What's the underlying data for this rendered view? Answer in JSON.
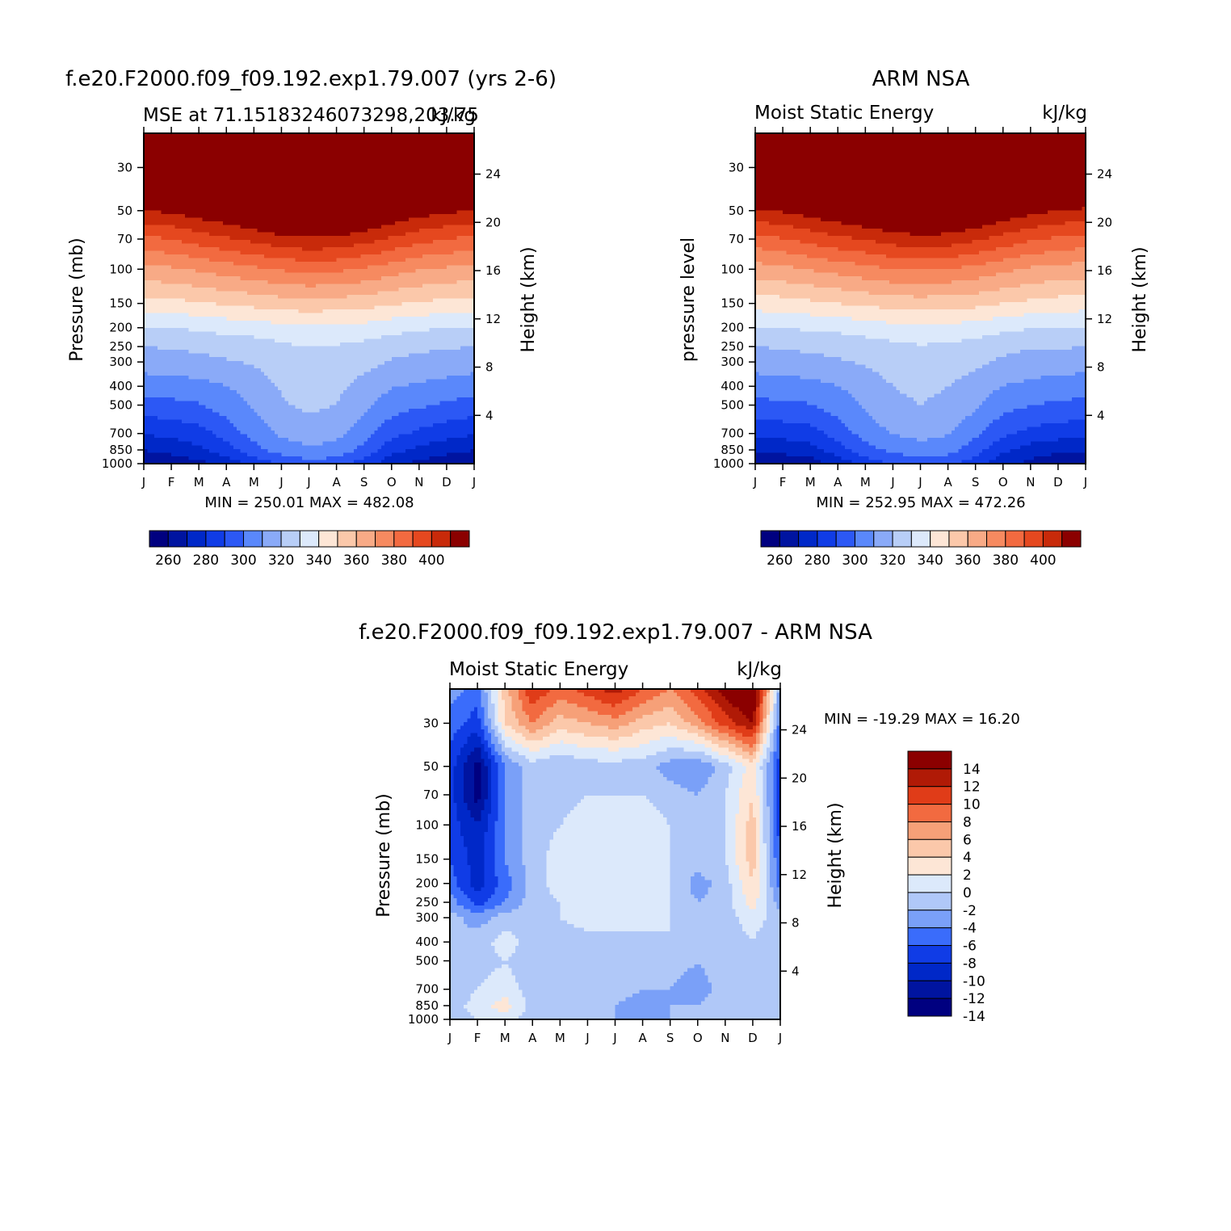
{
  "chart_data": [
    {
      "type": "heatmap",
      "title": "f.e20.F2000.f09_f09.192.exp1.79.007 (yrs 2-6)",
      "subtitle_left": "MSE at 71.15183246073298,203.75",
      "subtitle_right": "kJ/kg",
      "ylabel": "Pressure (mb)",
      "ylabel_right": "Height (km)",
      "minmax": "MIN = 250.01  MAX = 482.08",
      "x_ticks": [
        "J",
        "F",
        "M",
        "A",
        "M",
        "J",
        "J",
        "A",
        "S",
        "O",
        "N",
        "D",
        "J"
      ],
      "y_ticks": [
        30,
        50,
        70,
        100,
        150,
        200,
        250,
        300,
        400,
        500,
        700,
        850,
        1000
      ],
      "y_ticks_right": [
        24,
        20,
        16,
        12,
        8,
        4
      ],
      "ylim": [
        1000,
        20
      ],
      "colorbar_labels": [
        "260",
        "280",
        "300",
        "320",
        "340",
        "360",
        "380",
        "400"
      ],
      "levels": [
        255,
        260,
        265,
        270,
        275,
        280,
        285,
        290,
        295,
        300,
        305,
        310,
        315,
        320,
        325,
        330,
        335,
        340,
        345,
        350,
        355,
        360,
        365,
        370,
        375,
        380,
        385,
        390,
        395,
        400
      ],
      "months": [
        "Jan",
        "Feb",
        "Mar",
        "Apr",
        "May",
        "Jun",
        "Jul",
        "Aug",
        "Sep",
        "Oct",
        "Nov",
        "Dec",
        "Jan"
      ],
      "series": [
        {
          "pressure": 1000,
          "values": [
            256,
            258,
            262,
            268,
            278,
            285,
            290,
            288,
            280,
            268,
            262,
            258,
            256
          ]
        },
        {
          "pressure": 850,
          "values": [
            265,
            268,
            272,
            280,
            290,
            298,
            302,
            300,
            290,
            278,
            272,
            268,
            265
          ]
        },
        {
          "pressure": 700,
          "values": [
            275,
            277,
            280,
            288,
            298,
            305,
            308,
            306,
            298,
            287,
            282,
            278,
            275
          ]
        },
        {
          "pressure": 500,
          "values": [
            290,
            291,
            293,
            298,
            305,
            312,
            315,
            313,
            306,
            298,
            295,
            292,
            290
          ]
        },
        {
          "pressure": 400,
          "values": [
            298,
            299,
            300,
            303,
            308,
            314,
            317,
            315,
            310,
            304,
            302,
            300,
            298
          ]
        },
        {
          "pressure": 300,
          "values": [
            308,
            309,
            310,
            312,
            314,
            318,
            320,
            319,
            316,
            312,
            310,
            309,
            308
          ]
        },
        {
          "pressure": 250,
          "values": [
            313,
            314,
            315,
            317,
            318,
            321,
            323,
            322,
            320,
            317,
            315,
            314,
            313
          ]
        },
        {
          "pressure": 200,
          "values": [
            322,
            323,
            324,
            326,
            327,
            329,
            331,
            330,
            329,
            326,
            324,
            323,
            322
          ]
        },
        {
          "pressure": 150,
          "values": [
            338,
            339,
            341,
            343,
            345,
            347,
            348,
            347,
            346,
            343,
            341,
            339,
            338
          ]
        },
        {
          "pressure": 100,
          "values": [
            358,
            360,
            363,
            366,
            369,
            372,
            374,
            373,
            370,
            366,
            362,
            360,
            358
          ]
        },
        {
          "pressure": 70,
          "values": [
            378,
            381,
            385,
            389,
            393,
            397,
            399,
            398,
            394,
            389,
            384,
            381,
            378
          ]
        },
        {
          "pressure": 50,
          "values": [
            400,
            402,
            406,
            410,
            415,
            419,
            421,
            420,
            416,
            410,
            405,
            402,
            400
          ]
        },
        {
          "pressure": 30,
          "values": [
            440,
            442,
            446,
            451,
            456,
            460,
            462,
            461,
            457,
            451,
            445,
            442,
            440
          ]
        },
        {
          "pressure": 20,
          "values": [
            470,
            472,
            476,
            480,
            482,
            482,
            482,
            482,
            480,
            476,
            473,
            471,
            470
          ]
        }
      ]
    },
    {
      "type": "heatmap",
      "title": "ARM NSA",
      "subtitle_left": "Moist Static Energy",
      "subtitle_right": "kJ/kg",
      "ylabel": "pressure level",
      "ylabel_right": "Height (km)",
      "minmax": "MIN = 252.95  MAX = 472.26",
      "x_ticks": [
        "J",
        "F",
        "M",
        "A",
        "M",
        "J",
        "J",
        "A",
        "S",
        "O",
        "N",
        "D",
        "J"
      ],
      "y_ticks": [
        30,
        50,
        70,
        100,
        150,
        200,
        250,
        300,
        400,
        500,
        700,
        850,
        1000
      ],
      "y_ticks_right": [
        24,
        20,
        16,
        12,
        8,
        4
      ],
      "ylim": [
        1000,
        20
      ],
      "colorbar_labels": [
        "260",
        "280",
        "300",
        "320",
        "340",
        "360",
        "380",
        "400"
      ],
      "levels": [
        255,
        260,
        265,
        270,
        275,
        280,
        285,
        290,
        295,
        300,
        305,
        310,
        315,
        320,
        325,
        330,
        335,
        340,
        345,
        350,
        355,
        360,
        365,
        370,
        375,
        380,
        385,
        390,
        395,
        400
      ],
      "months": [
        "Jan",
        "Feb",
        "Mar",
        "Apr",
        "May",
        "Jun",
        "Jul",
        "Aug",
        "Sep",
        "Oct",
        "Nov",
        "Dec",
        "Jan"
      ],
      "series": [
        {
          "pressure": 1000,
          "values": [
            255,
            257,
            260,
            268,
            278,
            285,
            288,
            286,
            279,
            268,
            262,
            258,
            255
          ]
        },
        {
          "pressure": 850,
          "values": [
            266,
            268,
            270,
            280,
            290,
            296,
            300,
            298,
            288,
            276,
            270,
            267,
            266
          ]
        },
        {
          "pressure": 700,
          "values": [
            277,
            278,
            280,
            288,
            298,
            304,
            306,
            304,
            296,
            286,
            281,
            279,
            277
          ]
        },
        {
          "pressure": 500,
          "values": [
            291,
            292,
            293,
            298,
            305,
            311,
            313,
            311,
            305,
            297,
            294,
            292,
            291
          ]
        },
        {
          "pressure": 400,
          "values": [
            298,
            299,
            300,
            303,
            308,
            313,
            315,
            313,
            309,
            303,
            301,
            299,
            298
          ]
        },
        {
          "pressure": 300,
          "values": [
            308,
            309,
            310,
            312,
            314,
            317,
            319,
            318,
            315,
            311,
            309,
            308,
            308
          ]
        },
        {
          "pressure": 250,
          "values": [
            313,
            314,
            315,
            316,
            318,
            320,
            322,
            321,
            319,
            316,
            314,
            314,
            313
          ]
        },
        {
          "pressure": 200,
          "values": [
            322,
            323,
            324,
            325,
            327,
            329,
            330,
            329,
            328,
            325,
            323,
            322,
            322
          ]
        },
        {
          "pressure": 150,
          "values": [
            337,
            338,
            340,
            342,
            344,
            346,
            347,
            346,
            345,
            342,
            340,
            338,
            337
          ]
        },
        {
          "pressure": 100,
          "values": [
            357,
            359,
            362,
            365,
            368,
            371,
            372,
            371,
            368,
            364,
            360,
            358,
            357
          ]
        },
        {
          "pressure": 70,
          "values": [
            377,
            380,
            384,
            388,
            391,
            395,
            397,
            396,
            392,
            387,
            382,
            379,
            377
          ]
        },
        {
          "pressure": 50,
          "values": [
            398,
            401,
            405,
            409,
            413,
            417,
            419,
            418,
            414,
            408,
            403,
            400,
            398
          ]
        },
        {
          "pressure": 30,
          "values": [
            435,
            437,
            441,
            445,
            450,
            453,
            455,
            454,
            450,
            445,
            440,
            437,
            435
          ]
        },
        {
          "pressure": 20,
          "values": [
            462,
            464,
            467,
            470,
            472,
            472,
            472,
            472,
            470,
            467,
            464,
            462,
            462
          ]
        }
      ]
    },
    {
      "type": "heatmap",
      "title": "f.e20.F2000.f09_f09.192.exp1.79.007 - ARM NSA",
      "subtitle_left": "Moist Static Energy",
      "subtitle_right": "kJ/kg",
      "ylabel": "Pressure (mb)",
      "ylabel_right": "Height (km)",
      "minmax": "MIN = -19.29 MAX =   16.20",
      "x_ticks": [
        "J",
        "F",
        "M",
        "A",
        "M",
        "J",
        "J",
        "A",
        "S",
        "O",
        "N",
        "D",
        "J"
      ],
      "y_ticks": [
        30,
        50,
        70,
        100,
        150,
        200,
        250,
        300,
        400,
        500,
        700,
        850,
        1000
      ],
      "y_ticks_right": [
        24,
        20,
        16,
        12,
        8,
        4
      ],
      "ylim": [
        1000,
        20
      ],
      "colorbar_labels": [
        "14",
        "12",
        "10",
        "8",
        "6",
        "4",
        "2",
        "0",
        "-2",
        "-4",
        "-6",
        "-8",
        "-10",
        "-12",
        "-14"
      ],
      "levels": [
        -14,
        -12,
        -10,
        -8,
        -6,
        -4,
        -2,
        0,
        2,
        4,
        6,
        8,
        10,
        12,
        14
      ],
      "months": [
        "Jan",
        "Feb",
        "Mar",
        "Apr",
        "May",
        "Jun",
        "Jul",
        "Aug",
        "Sep",
        "Oct",
        "Nov",
        "Dec",
        "Jan"
      ],
      "series": [
        {
          "pressure": 1000,
          "values": [
            -3,
            -2,
            -1,
            -3,
            -4,
            -4,
            -4,
            -5,
            -4,
            -4,
            -3,
            -3,
            -3
          ]
        },
        {
          "pressure": 850,
          "values": [
            -3,
            -1,
            1,
            -3,
            -3,
            -4,
            -4,
            -5,
            -4,
            -4,
            -3,
            -2,
            -3
          ]
        },
        {
          "pressure": 700,
          "values": [
            -4,
            -2,
            -1,
            -3,
            -3,
            -3,
            -3,
            -4,
            -4,
            -5,
            -3,
            -2,
            -4
          ]
        },
        {
          "pressure": 500,
          "values": [
            -4,
            -3,
            -2,
            -3,
            -3,
            -3,
            -3,
            -3,
            -3,
            -4,
            -3,
            -2,
            -4
          ]
        },
        {
          "pressure": 400,
          "values": [
            -4,
            -3,
            -1,
            -3,
            -3,
            -3,
            -3,
            -3,
            -2,
            -3,
            -3,
            -2,
            -4
          ]
        },
        {
          "pressure": 300,
          "values": [
            -3,
            -5,
            -3,
            -3,
            -2,
            -1,
            -1,
            -1,
            -2,
            -3,
            -3,
            -1,
            -3
          ]
        },
        {
          "pressure": 250,
          "values": [
            -5,
            -9,
            -6,
            -3,
            -2,
            -1,
            0,
            -1,
            -2,
            -4,
            -3,
            1,
            -5
          ]
        },
        {
          "pressure": 200,
          "values": [
            -7,
            -11,
            -7,
            -3,
            -1,
            -1,
            0,
            -1,
            -2,
            -5,
            -3,
            2,
            -7
          ]
        },
        {
          "pressure": 150,
          "values": [
            -8,
            -11,
            -6,
            -3,
            -1,
            -1,
            0,
            -1,
            -2,
            -3,
            -2,
            3,
            -8
          ]
        },
        {
          "pressure": 100,
          "values": [
            -9,
            -12,
            -6,
            -3,
            -2,
            -1,
            -1,
            -1,
            -2,
            -3,
            -2,
            3,
            -9
          ]
        },
        {
          "pressure": 70,
          "values": [
            -9,
            -15,
            -6,
            -3,
            -3,
            -2,
            -2,
            -2,
            -3,
            -4,
            -2,
            2,
            -9
          ]
        },
        {
          "pressure": 50,
          "values": [
            -9,
            -15,
            -6,
            -3,
            -4,
            -3,
            -3,
            -3,
            -5,
            -6,
            -3,
            1,
            -9
          ]
        },
        {
          "pressure": 30,
          "values": [
            -7,
            -9,
            2,
            6,
            3,
            4,
            5,
            3,
            2,
            5,
            9,
            12,
            -7
          ]
        },
        {
          "pressure": 20,
          "values": [
            -5,
            -7,
            3,
            10,
            7,
            9,
            11,
            8,
            6,
            9,
            13,
            16,
            -5
          ]
        }
      ]
    }
  ]
}
